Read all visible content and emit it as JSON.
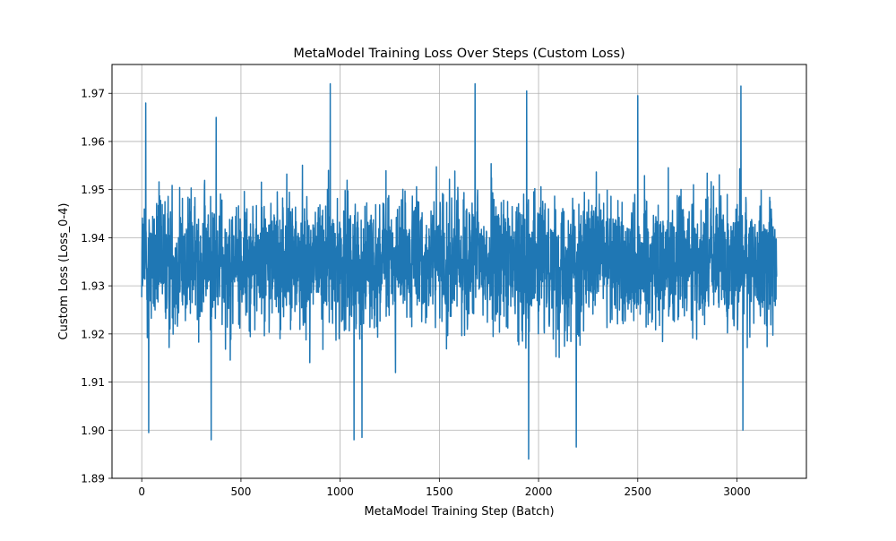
{
  "chart_data": {
    "type": "line",
    "title": "MetaModel Training Loss Over Steps (Custom Loss)",
    "xlabel": "MetaModel Training Step (Batch)",
    "ylabel": "Custom Loss (Loss_0-4)",
    "xlim": [
      -150,
      3350
    ],
    "ylim": [
      1.89,
      1.976
    ],
    "grid": true,
    "x_ticks": [
      0,
      500,
      1000,
      1500,
      2000,
      2500,
      3000
    ],
    "y_ticks": [
      1.89,
      1.9,
      1.91,
      1.92,
      1.93,
      1.94,
      1.95,
      1.96,
      1.97
    ],
    "x_tick_labels": [
      "0",
      "500",
      "1000",
      "1500",
      "2000",
      "2500",
      "3000"
    ],
    "y_tick_labels": [
      "1.89",
      "1.90",
      "1.91",
      "1.92",
      "1.93",
      "1.94",
      "1.95",
      "1.96",
      "1.97"
    ],
    "series_color": "#1f77b4",
    "series": [
      {
        "name": "",
        "x_start": 0,
        "x_end": 3200,
        "n_points": 3201,
        "mean": 1.935,
        "typical_range": [
          1.92,
          1.95
        ],
        "min": 1.894,
        "max": 1.972,
        "notable_points": [
          {
            "x": 20,
            "y": 1.968
          },
          {
            "x": 35,
            "y": 1.8995
          },
          {
            "x": 350,
            "y": 1.898
          },
          {
            "x": 375,
            "y": 1.965
          },
          {
            "x": 950,
            "y": 1.972
          },
          {
            "x": 1070,
            "y": 1.898
          },
          {
            "x": 1110,
            "y": 1.8985
          },
          {
            "x": 1680,
            "y": 1.972
          },
          {
            "x": 1940,
            "y": 1.9705
          },
          {
            "x": 1950,
            "y": 1.894
          },
          {
            "x": 2190,
            "y": 1.8965
          },
          {
            "x": 2500,
            "y": 1.9695
          },
          {
            "x": 3020,
            "y": 1.9715
          },
          {
            "x": 3030,
            "y": 1.9
          }
        ]
      }
    ]
  }
}
